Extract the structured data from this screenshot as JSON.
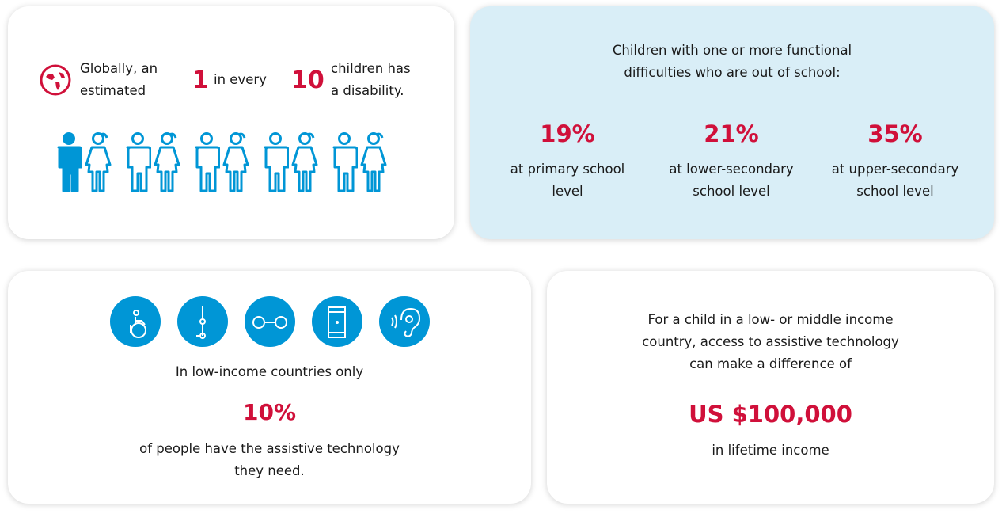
{
  "card1": {
    "text_a": "Globally, an",
    "text_b": "estimated",
    "num1": "1",
    "mid": "in every",
    "num2": "10",
    "text_c": "children has",
    "text_d": "a disability.",
    "icon": "globe-icon",
    "figures": 10,
    "highlighted": 1
  },
  "card2": {
    "title_1": "Children with one or more functional",
    "title_2": "difficulties who are out of school:",
    "stats": [
      {
        "value": "19%",
        "l1": "at primary school",
        "l2": "level"
      },
      {
        "value": "21%",
        "l1": "at lower-secondary",
        "l2": "school level"
      },
      {
        "value": "35%",
        "l1": "at upper-secondary",
        "l2": "school level"
      }
    ]
  },
  "card3": {
    "icons": [
      "wheelchair-icon",
      "prosthesis-icon",
      "glasses-icon",
      "phone-icon",
      "hearing-icon"
    ],
    "line1": "In low-income countries only",
    "value": "10%",
    "line2": "of people have the assistive technology",
    "line3": "they need."
  },
  "card4": {
    "l1": "For a child in a low- or middle income",
    "l2": "country, access to assistive technology",
    "l3": "can make a difference of",
    "value": "US $100,000",
    "l4": "in lifetime income"
  },
  "colors": {
    "red": "#d0103a",
    "blue": "#0096d6",
    "panel": "#d9eef7"
  }
}
